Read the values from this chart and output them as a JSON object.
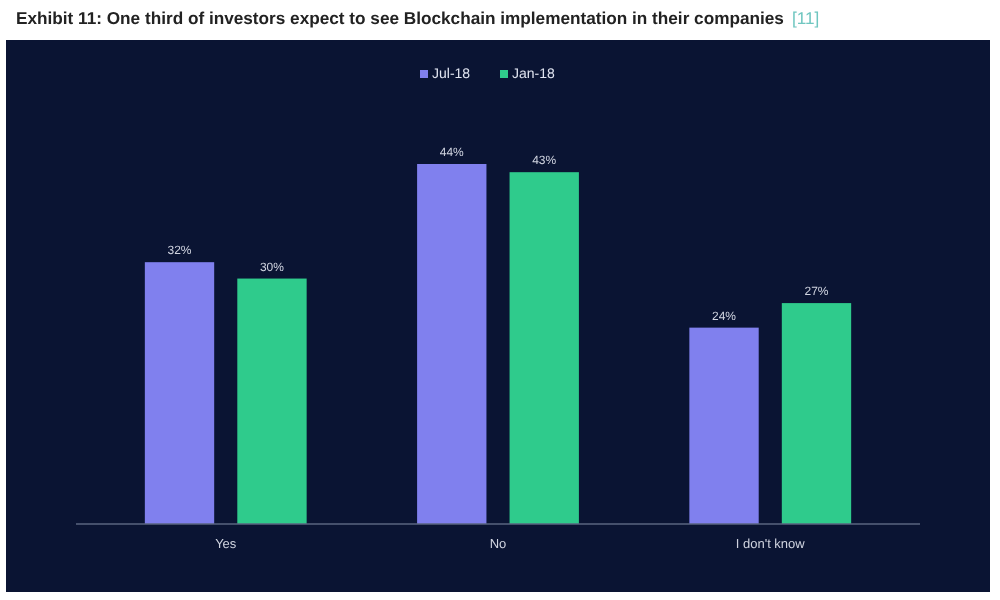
{
  "chart_data": {
    "type": "bar",
    "title": "Exhibit 11: One third of investors expect to see Blockchain implementation in their companies",
    "subtitle": "[11]",
    "categories": [
      "Yes",
      "No",
      "I don't know"
    ],
    "series": [
      {
        "name": "Jul-18",
        "color": "#8080ee",
        "values": [
          32,
          44,
          24
        ],
        "value_labels": [
          "32%",
          "44%",
          "24%"
        ]
      },
      {
        "name": "Jan-18",
        "color": "#2fcb8c",
        "values": [
          30,
          43,
          27
        ],
        "value_labels": [
          "30%",
          "43%",
          "27%"
        ]
      }
    ],
    "legend": "top"
  }
}
